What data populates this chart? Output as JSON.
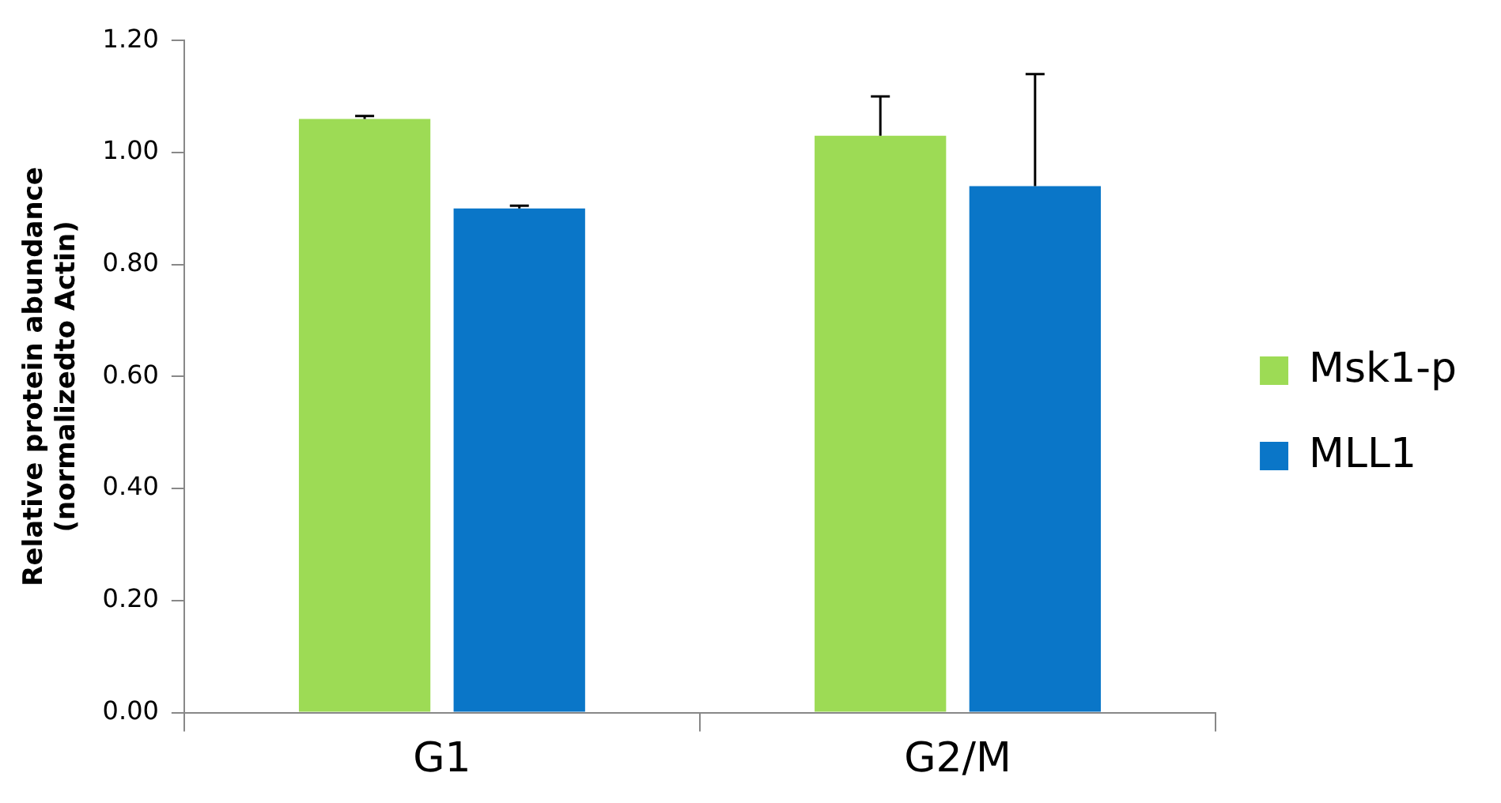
{
  "chart_data": {
    "type": "bar",
    "ylabel": "Relative protein abundance\n(normalizedto Actin)",
    "categories": [
      "G1",
      "G2/M"
    ],
    "series": [
      {
        "name": "Msk1-p",
        "color": "#9ddb55",
        "values": [
          1.06,
          1.03
        ],
        "errors": [
          0.005,
          0.07
        ]
      },
      {
        "name": "MLL1",
        "color": "#0a76c8",
        "values": [
          0.9,
          0.94
        ],
        "errors": [
          0.005,
          0.2
        ]
      }
    ],
    "ylim": [
      0,
      1.2
    ],
    "yticks": [
      {
        "value": 0,
        "label": "0.00"
      },
      {
        "value": 0.2,
        "label": "0.20"
      },
      {
        "value": 0.4,
        "label": "0.40"
      },
      {
        "value": 0.6,
        "label": "0.60"
      },
      {
        "value": 0.8,
        "label": "0.80"
      },
      {
        "value": 1,
        "label": "1.00"
      },
      {
        "value": 1.2,
        "label": "1.20"
      }
    ],
    "grid": false,
    "legend": "right"
  }
}
